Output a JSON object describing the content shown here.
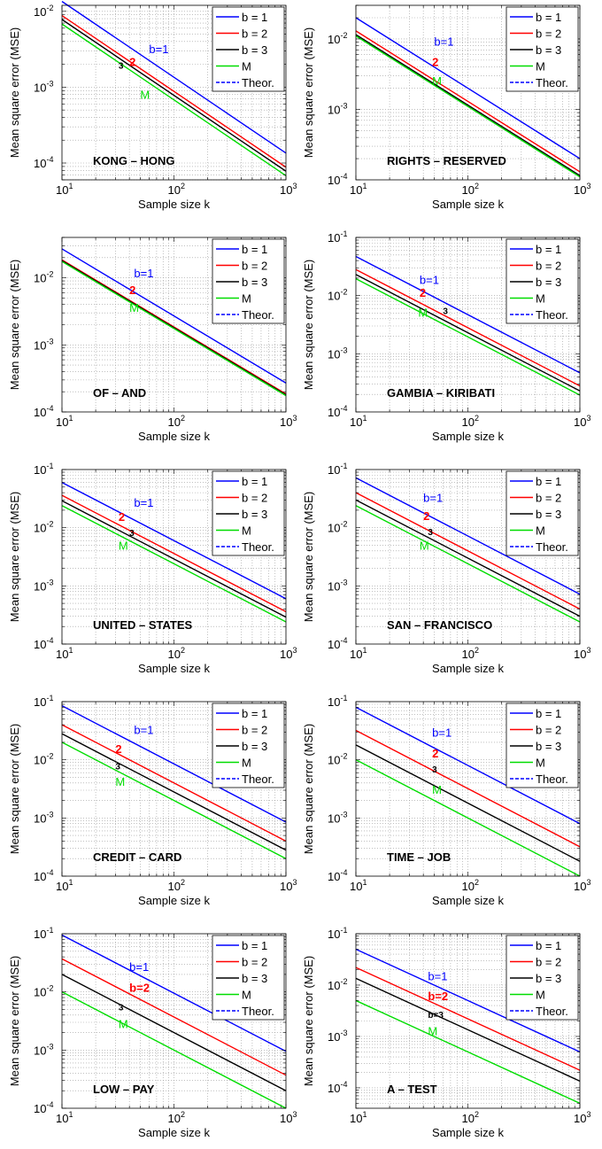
{
  "legend_labels": [
    "b = 1",
    "b = 2",
    "b = 3",
    "M",
    "Theor."
  ],
  "colors": {
    "b1": "#0000ff",
    "b2": "#ff0000",
    "b3": "#000000",
    "M": "#00dd00",
    "theor": "#0000ff"
  },
  "chart_data": [
    {
      "type": "line",
      "title": "KONG – HONG",
      "xlabel": "Sample size k",
      "ylabel": "Mean square error (MSE)",
      "xscale": "log",
      "yscale": "log",
      "xlim": [
        10,
        1000
      ],
      "ylim": [
        6e-05,
        0.012
      ],
      "grid": true,
      "legend": "top-right",
      "yticks": [
        -4,
        -3,
        -2
      ],
      "series": [
        {
          "name": "b = 1",
          "x": [
            10,
            1000
          ],
          "y": [
            0.0135,
            0.000135
          ]
        },
        {
          "name": "b = 2",
          "x": [
            10,
            1000
          ],
          "y": [
            0.0088,
            8.8e-05
          ]
        },
        {
          "name": "b = 3",
          "x": [
            10,
            1000
          ],
          "y": [
            0.0078,
            7.8e-05
          ]
        },
        {
          "name": "M",
          "x": [
            10,
            1000
          ],
          "y": [
            0.0068,
            6.8e-05
          ]
        }
      ],
      "annotations": [
        {
          "text": "b=1",
          "x": 60,
          "y": 0.0028,
          "series": "b1"
        },
        {
          "text": "2",
          "x": 40,
          "y": 0.0019,
          "series": "b2"
        },
        {
          "text": "3",
          "x": 32,
          "y": 0.00175,
          "series": "b3"
        },
        {
          "text": "M",
          "x": 50,
          "y": 0.0007,
          "series": "M"
        }
      ]
    },
    {
      "type": "line",
      "title": "RIGHTS – RESERVED",
      "xlabel": "Sample size k",
      "ylabel": "Mean square error (MSE)",
      "xscale": "log",
      "yscale": "log",
      "xlim": [
        10,
        1000
      ],
      "ylim": [
        0.0001,
        0.03
      ],
      "grid": true,
      "legend": "top-right",
      "yticks": [
        -4,
        -3,
        -2
      ],
      "series": [
        {
          "name": "b = 1",
          "x": [
            10,
            1000
          ],
          "y": [
            0.02,
            0.0002
          ]
        },
        {
          "name": "b = 2",
          "x": [
            10,
            1000
          ],
          "y": [
            0.013,
            0.00013
          ]
        },
        {
          "name": "b = 3",
          "x": [
            10,
            1000
          ],
          "y": [
            0.0115,
            0.000115
          ]
        },
        {
          "name": "M",
          "x": [
            10,
            1000
          ],
          "y": [
            0.011,
            0.00011
          ]
        }
      ],
      "annotations": [
        {
          "text": "b=1",
          "x": 50,
          "y": 0.008,
          "series": "b1"
        },
        {
          "text": "2",
          "x": 48,
          "y": 0.0041,
          "series": "b2"
        },
        {
          "text": "M",
          "x": 48,
          "y": 0.0022,
          "series": "M"
        }
      ]
    },
    {
      "type": "line",
      "title": "OF – AND",
      "xlabel": "Sample size k",
      "ylabel": "Mean square error (MSE)",
      "xscale": "log",
      "yscale": "log",
      "xlim": [
        10,
        1000
      ],
      "ylim": [
        0.0001,
        0.04
      ],
      "grid": true,
      "legend": "top-right",
      "yticks": [
        -4,
        -3,
        -2
      ],
      "series": [
        {
          "name": "b = 1",
          "x": [
            10,
            1000
          ],
          "y": [
            0.027,
            0.00027
          ]
        },
        {
          "name": "b = 2",
          "x": [
            10,
            1000
          ],
          "y": [
            0.0185,
            0.000185
          ]
        },
        {
          "name": "b = 3",
          "x": [
            10,
            1000
          ],
          "y": [
            0.018,
            0.00018
          ]
        },
        {
          "name": "M",
          "x": [
            10,
            1000
          ],
          "y": [
            0.0175,
            0.000175
          ]
        }
      ],
      "annotations": [
        {
          "text": "b=1",
          "x": 44,
          "y": 0.0102,
          "series": "b1"
        },
        {
          "text": "2",
          "x": 40,
          "y": 0.0057,
          "series": "b2"
        },
        {
          "text": "M",
          "x": 40,
          "y": 0.0031,
          "series": "M"
        }
      ]
    },
    {
      "type": "line",
      "title": "GAMBIA – KIRIBATI",
      "xlabel": "Sample size k",
      "ylabel": "Mean square error (MSE)",
      "xscale": "log",
      "yscale": "log",
      "xlim": [
        10,
        1000
      ],
      "ylim": [
        0.0001,
        0.1
      ],
      "grid": true,
      "legend": "top-right",
      "yticks": [
        -4,
        -3,
        -2,
        -1
      ],
      "series": [
        {
          "name": "b = 1",
          "x": [
            10,
            1000
          ],
          "y": [
            0.047,
            0.00047
          ]
        },
        {
          "name": "b = 2",
          "x": [
            10,
            1000
          ],
          "y": [
            0.028,
            0.00028
          ]
        },
        {
          "name": "b = 3",
          "x": [
            10,
            1000
          ],
          "y": [
            0.023,
            0.00023
          ]
        },
        {
          "name": "M",
          "x": [
            10,
            1000
          ],
          "y": [
            0.0195,
            0.000195
          ]
        }
      ],
      "annotations": [
        {
          "text": "b=1",
          "x": 37,
          "y": 0.016,
          "series": "b1"
        },
        {
          "text": "2",
          "x": 37,
          "y": 0.0095,
          "series": "b2"
        },
        {
          "text": "3",
          "x": 60,
          "y": 0.0048,
          "series": "b3"
        },
        {
          "text": "M",
          "x": 36,
          "y": 0.0043,
          "series": "M"
        }
      ]
    },
    {
      "type": "line",
      "title": "UNITED – STATES",
      "xlabel": "Sample size k",
      "ylabel": "Mean square error (MSE)",
      "xscale": "log",
      "yscale": "log",
      "xlim": [
        10,
        1000
      ],
      "ylim": [
        0.0001,
        0.1
      ],
      "grid": true,
      "legend": "top-right",
      "yticks": [
        -4,
        -3,
        -2,
        -1
      ],
      "series": [
        {
          "name": "b = 1",
          "x": [
            10,
            1000
          ],
          "y": [
            0.06,
            0.0006
          ]
        },
        {
          "name": "b = 2",
          "x": [
            10,
            1000
          ],
          "y": [
            0.036,
            0.00036
          ]
        },
        {
          "name": "b = 3",
          "x": [
            10,
            1000
          ],
          "y": [
            0.029,
            0.00029
          ]
        },
        {
          "name": "M",
          "x": [
            10,
            1000
          ],
          "y": [
            0.024,
            0.00024
          ]
        }
      ],
      "annotations": [
        {
          "text": "b=1",
          "x": 44,
          "y": 0.023,
          "series": "b1"
        },
        {
          "text": "2",
          "x": 32,
          "y": 0.013,
          "series": "b2"
        },
        {
          "text": "3",
          "x": 40,
          "y": 0.0072,
          "series": "b3"
        },
        {
          "text": "M",
          "x": 32,
          "y": 0.0042,
          "series": "M"
        }
      ]
    },
    {
      "type": "line",
      "title": "SAN – FRANCISCO",
      "xlabel": "Sample size k",
      "ylabel": "Mean square error (MSE)",
      "xscale": "log",
      "yscale": "log",
      "xlim": [
        10,
        1000
      ],
      "ylim": [
        0.0001,
        0.1
      ],
      "grid": true,
      "legend": "top-right",
      "yticks": [
        -4,
        -3,
        -2,
        -1
      ],
      "series": [
        {
          "name": "b = 1",
          "x": [
            10,
            1000
          ],
          "y": [
            0.072,
            0.00072
          ]
        },
        {
          "name": "b = 2",
          "x": [
            10,
            1000
          ],
          "y": [
            0.04,
            0.0004
          ]
        },
        {
          "name": "b = 3",
          "x": [
            10,
            1000
          ],
          "y": [
            0.03,
            0.0003
          ]
        },
        {
          "name": "M",
          "x": [
            10,
            1000
          ],
          "y": [
            0.024,
            0.00024
          ]
        }
      ],
      "annotations": [
        {
          "text": "b=1",
          "x": 40,
          "y": 0.028,
          "series": "b1"
        },
        {
          "text": "2",
          "x": 40,
          "y": 0.0135,
          "series": "b2"
        },
        {
          "text": "3",
          "x": 44,
          "y": 0.0075,
          "series": "b3"
        },
        {
          "text": "M",
          "x": 37,
          "y": 0.0042,
          "series": "M"
        }
      ]
    },
    {
      "type": "line",
      "title": "CREDIT – CARD",
      "xlabel": "Sample size k",
      "ylabel": "Mean square error (MSE)",
      "xscale": "log",
      "yscale": "log",
      "xlim": [
        10,
        1000
      ],
      "ylim": [
        0.0001,
        0.1
      ],
      "grid": true,
      "legend": "top-right",
      "yticks": [
        -4,
        -3,
        -2,
        -1
      ],
      "series": [
        {
          "name": "b = 1",
          "x": [
            10,
            1000
          ],
          "y": [
            0.085,
            0.00085
          ]
        },
        {
          "name": "b = 2",
          "x": [
            10,
            1000
          ],
          "y": [
            0.04,
            0.0004
          ]
        },
        {
          "name": "b = 3",
          "x": [
            10,
            1000
          ],
          "y": [
            0.028,
            0.00028
          ]
        },
        {
          "name": "M",
          "x": [
            10,
            1000
          ],
          "y": [
            0.02,
            0.0002
          ]
        }
      ],
      "annotations": [
        {
          "text": "b=1",
          "x": 44,
          "y": 0.028,
          "series": "b1"
        },
        {
          "text": "2",
          "x": 30,
          "y": 0.013,
          "series": "b2"
        },
        {
          "text": "3",
          "x": 30,
          "y": 0.0068,
          "series": "b3"
        },
        {
          "text": "M",
          "x": 30,
          "y": 0.0036,
          "series": "M"
        }
      ]
    },
    {
      "type": "line",
      "title": "TIME – JOB",
      "xlabel": "Sample size k",
      "ylabel": "Mean square error (MSE)",
      "xscale": "log",
      "yscale": "log",
      "xlim": [
        10,
        1000
      ],
      "ylim": [
        0.0001,
        0.1
      ],
      "grid": true,
      "legend": "top-right",
      "yticks": [
        -4,
        -3,
        -2,
        -1
      ],
      "series": [
        {
          "name": "b = 1",
          "x": [
            10,
            1000
          ],
          "y": [
            0.08,
            0.0008
          ]
        },
        {
          "name": "b = 2",
          "x": [
            10,
            1000
          ],
          "y": [
            0.032,
            0.00032
          ]
        },
        {
          "name": "b = 3",
          "x": [
            10,
            1000
          ],
          "y": [
            0.018,
            0.00018
          ]
        },
        {
          "name": "M",
          "x": [
            10,
            1000
          ],
          "y": [
            0.01,
            0.0001
          ]
        }
      ],
      "annotations": [
        {
          "text": "b=1",
          "x": 48,
          "y": 0.025,
          "series": "b1"
        },
        {
          "text": "2",
          "x": 48,
          "y": 0.011,
          "series": "b2"
        },
        {
          "text": "3",
          "x": 48,
          "y": 0.006,
          "series": "b3"
        },
        {
          "text": "M",
          "x": 48,
          "y": 0.0026,
          "series": "M"
        }
      ]
    },
    {
      "type": "line",
      "title": "LOW – PAY",
      "xlabel": "Sample size k",
      "ylabel": "Mean square error (MSE)",
      "xscale": "log",
      "yscale": "log",
      "xlim": [
        10,
        1000
      ],
      "ylim": [
        0.0001,
        0.1
      ],
      "grid": true,
      "legend": "top-right",
      "yticks": [
        -4,
        -3,
        -2,
        -1
      ],
      "series": [
        {
          "name": "b = 1",
          "x": [
            10,
            1000
          ],
          "y": [
            0.095,
            0.00095
          ]
        },
        {
          "name": "b = 2",
          "x": [
            10,
            1000
          ],
          "y": [
            0.037,
            0.00037
          ]
        },
        {
          "name": "b = 3",
          "x": [
            10,
            1000
          ],
          "y": [
            0.02,
            0.0002
          ]
        },
        {
          "name": "M",
          "x": [
            10,
            1000
          ],
          "y": [
            0.01,
            0.0001
          ]
        }
      ],
      "annotations": [
        {
          "text": "b=1",
          "x": 40,
          "y": 0.023,
          "series": "b1"
        },
        {
          "text": "b=2",
          "x": 40,
          "y": 0.01,
          "series": "b2"
        },
        {
          "text": "3",
          "x": 32,
          "y": 0.0048,
          "series": "b3"
        },
        {
          "text": "M",
          "x": 32,
          "y": 0.0024,
          "series": "M"
        }
      ]
    },
    {
      "type": "line",
      "title": "A – TEST",
      "xlabel": "Sample size k",
      "ylabel": "Mean square error (MSE)",
      "xscale": "log",
      "yscale": "log",
      "xlim": [
        10,
        1000
      ],
      "ylim": [
        4e-05,
        0.1
      ],
      "grid": true,
      "legend": "top-right",
      "yticks": [
        -4,
        -3,
        -2,
        -1
      ],
      "series": [
        {
          "name": "b = 1",
          "x": [
            10,
            1000
          ],
          "y": [
            0.05,
            0.0005
          ]
        },
        {
          "name": "b = 2",
          "x": [
            10,
            1000
          ],
          "y": [
            0.022,
            0.00022
          ]
        },
        {
          "name": "b = 3",
          "x": [
            10,
            1000
          ],
          "y": [
            0.0135,
            0.000135
          ]
        },
        {
          "name": "M",
          "x": [
            10,
            1000
          ],
          "y": [
            0.005,
            5e-05
          ]
        }
      ],
      "annotations": [
        {
          "text": "b=1",
          "x": 44,
          "y": 0.0125,
          "series": "b1"
        },
        {
          "text": "b=2",
          "x": 44,
          "y": 0.0051,
          "series": "b2"
        },
        {
          "text": "b=3",
          "x": 44,
          "y": 0.0023,
          "series": "b3"
        },
        {
          "text": "M",
          "x": 44,
          "y": 0.00105,
          "series": "M"
        }
      ]
    }
  ]
}
